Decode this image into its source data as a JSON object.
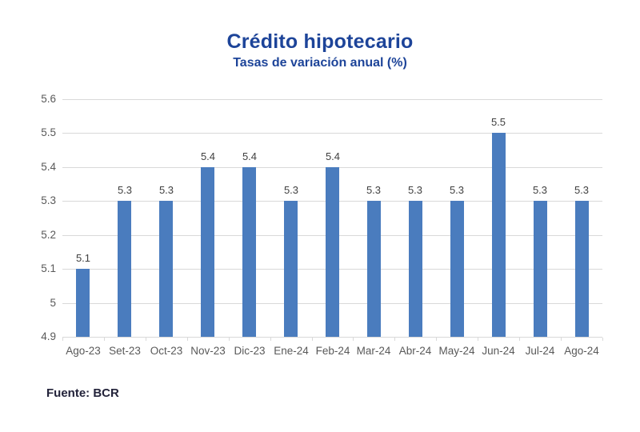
{
  "header": {
    "title": "Crédito hipotecario",
    "subtitle": "Tasas de variación anual (%)"
  },
  "footer": {
    "source_label": "Fuente: BCR"
  },
  "chart_data": {
    "type": "bar",
    "title": "Crédito hipotecario",
    "subtitle": "Tasas de variación anual (%)",
    "categories": [
      "Ago-23",
      "Set-23",
      "Oct-23",
      "Nov-23",
      "Dic-23",
      "Ene-24",
      "Feb-24",
      "Mar-24",
      "Abr-24",
      "May-24",
      "Jun-24",
      "Jul-24",
      "Ago-24"
    ],
    "values": [
      5.1,
      5.3,
      5.3,
      5.4,
      5.4,
      5.3,
      5.4,
      5.3,
      5.3,
      5.3,
      5.5,
      5.3,
      5.3
    ],
    "data_labels": [
      "5.1",
      "5.3",
      "5.3",
      "5.4",
      "5.4",
      "5.3",
      "5.4",
      "5.3",
      "5.3",
      "5.3",
      "5.5",
      "5.3",
      "5.3"
    ],
    "xlabel": "",
    "ylabel": "",
    "ylim": [
      4.9,
      5.6
    ],
    "ytick_labels": [
      "4.9",
      "5",
      "5.1",
      "5.2",
      "5.3",
      "5.4",
      "5.5",
      "5.6"
    ],
    "grid": true,
    "legend": false,
    "colors": {
      "bar": "#4a7cbe",
      "gridline": "#d9d9d9",
      "axis_line": "#d9d9d9",
      "tick_label": "#595959",
      "data_label": "#404040",
      "title": "#1d4499"
    }
  }
}
